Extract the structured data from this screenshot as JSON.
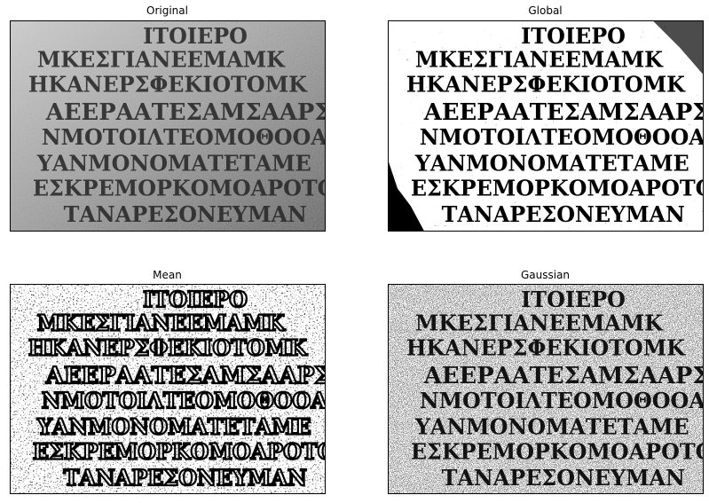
{
  "figure": {
    "panels": [
      {
        "id": "original",
        "title": "Original",
        "style": "grayscale"
      },
      {
        "id": "global",
        "title": "Global",
        "style": "binary-global"
      },
      {
        "id": "mean",
        "title": "Mean",
        "style": "binary-adaptive-mean"
      },
      {
        "id": "gaussian",
        "title": "Gaussian",
        "style": "binary-adaptive-gaussian"
      }
    ]
  }
}
